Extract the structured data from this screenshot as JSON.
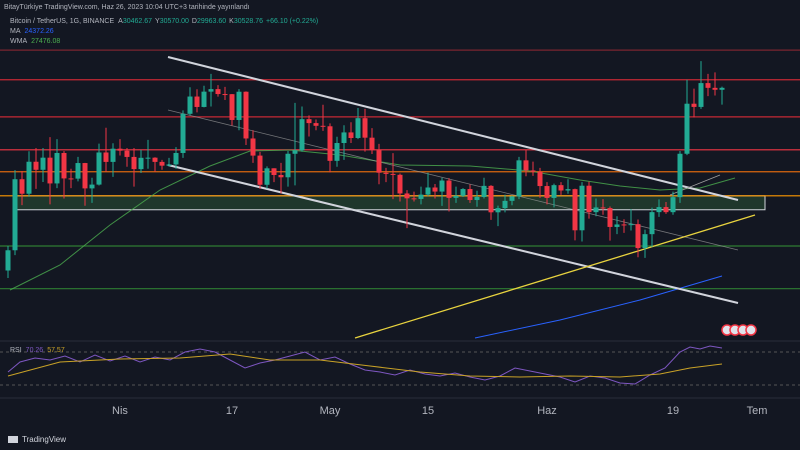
{
  "header": {
    "published": "BitayTürkiye TradingView.com, Haz 26, 2023 10:04 UTC+3 tarihinde yayınlandı",
    "footer": "TradingView"
  },
  "chart_data": {
    "type": "candlestick",
    "symbol": "Bitcoin / TetherUS, 1G, BINANCE",
    "last_value_labels": {
      "prefixes": [
        "A",
        "Y",
        "D",
        "K"
      ],
      "labels": [
        "30462.67",
        "30570.00",
        "29963.60",
        "30528.76"
      ],
      "change": "+66.10 (+0.22%)"
    },
    "indicators": [
      {
        "name": "MA",
        "value": 24372.26,
        "color": "#2962ff"
      },
      {
        "name": "WMA",
        "value": 27476.08,
        "color": "#4caf50"
      }
    ],
    "rsi": {
      "name": "RSI",
      "value": 70.26,
      "ma": 57.57,
      "color": "#7e57c2",
      "ma_color": "#c9a227"
    },
    "up_color": "#22ab94",
    "down_color": "#f23645",
    "ylim": [
      22200,
      32140
    ],
    "categories": [
      null,
      null,
      null,
      null,
      null,
      null,
      null,
      null,
      null,
      null,
      null,
      null,
      null,
      null,
      null,
      null,
      "Nis",
      null,
      null,
      null,
      null,
      null,
      null,
      null,
      null,
      null,
      null,
      null,
      null,
      null,
      null,
      null,
      "17",
      null,
      null,
      null,
      null,
      null,
      null,
      null,
      null,
      null,
      null,
      null,
      null,
      null,
      "May",
      null,
      null,
      null,
      null,
      null,
      null,
      null,
      null,
      null,
      null,
      null,
      null,
      null,
      "15",
      null,
      null,
      null,
      null,
      null,
      null,
      null,
      null,
      null,
      null,
      null,
      null,
      null,
      null,
      null,
      null,
      "Haz",
      null,
      null,
      null,
      null,
      null,
      null,
      null,
      null,
      null,
      null,
      null,
      null,
      null,
      null,
      null,
      null,
      null,
      "19",
      null,
      null,
      null,
      null,
      null,
      null,
      null,
      null,
      null,
      null,
      null,
      "Tem"
    ],
    "open": [
      24373,
      25055,
      27449,
      26960,
      28038,
      27767,
      28175,
      27307,
      28333,
      27476,
      27469,
      27994,
      27140,
      27268,
      28350,
      28033,
      28478,
      28411,
      28200,
      27790,
      28170,
      28175,
      28033,
      27906,
      27947,
      28333,
      29653,
      30235,
      29884,
      30400,
      30485,
      30319,
      30315,
      29445,
      30397,
      28822,
      28245,
      27262,
      27817,
      27591,
      27514,
      28307,
      28422,
      29473,
      29340,
      29249,
      29233,
      28068,
      28669,
      29026,
      28838,
      29506,
      28849,
      28430,
      27668,
      27628,
      27598,
      26969,
      26805,
      26784,
      26930,
      27170,
      27033,
      27405,
      26821,
      26890,
      27118,
      26748,
      26850,
      27225,
      26334,
      26476,
      26720,
      26869,
      28085,
      27745,
      27700,
      27219,
      26819,
      27249,
      27069,
      27115,
      25728,
      27230,
      26339,
      26498,
      26477,
      25841,
      25925,
      25905,
      25935,
      25128,
      25598,
      26340,
      26510,
      26339,
      26845,
      28307,
      29993,
      29885,
      30688,
      30528,
      30462.67,
      null,
      null,
      null,
      null,
      null
    ],
    "high": [
      25200,
      27756,
      27725,
      28390,
      28500,
      28500,
      28868,
      28800,
      28400,
      27800,
      28200,
      28000,
      27500,
      28650,
      29185,
      28660,
      28800,
      28500,
      28500,
      28444,
      28775,
      28190,
      28100,
      28170,
      28530,
      29770,
      30550,
      30480,
      30600,
      31000,
      30620,
      30560,
      30320,
      30485,
      30410,
      29100,
      28370,
      27880,
      27820,
      28000,
      28400,
      30020,
      29900,
      29600,
      29460,
      29960,
      29330,
      28880,
      29266,
      29370,
      29850,
      29820,
      29170,
      28640,
      27830,
      28330,
      27640,
      27080,
      27030,
      27200,
      27665,
      27290,
      27500,
      27485,
      27200,
      27150,
      27270,
      27060,
      27500,
      27250,
      26560,
      26930,
      26890,
      28200,
      28450,
      28040,
      27830,
      27350,
      27300,
      27350,
      27450,
      27130,
      27350,
      27370,
      26800,
      26780,
      26530,
      26200,
      26100,
      26440,
      26090,
      25750,
      26490,
      26770,
      26680,
      27030,
      28400,
      30800,
      30500,
      31430,
      31000,
      31050,
      30570,
      null,
      null,
      null,
      null,
      null
    ],
    "low": [
      24120,
      24890,
      26578,
      26860,
      27124,
      27357,
      26601,
      27150,
      26800,
      27150,
      27375,
      26555,
      26650,
      27236,
      27700,
      27530,
      28250,
      27870,
      27200,
      27660,
      27800,
      27700,
      27770,
      27880,
      27800,
      28170,
      29600,
      29700,
      29870,
      29900,
      30230,
      30120,
      29260,
      29100,
      28600,
      28000,
      27125,
      27130,
      27350,
      26970,
      27200,
      27240,
      28380,
      28890,
      29100,
      29080,
      27680,
      27870,
      28100,
      28670,
      28800,
      28380,
      28300,
      27280,
      27350,
      26780,
      26700,
      25800,
      26700,
      26600,
      26880,
      26800,
      26550,
      26360,
      26650,
      26850,
      26650,
      26520,
      26800,
      26080,
      25870,
      26330,
      26570,
      26780,
      27550,
      27560,
      26820,
      26600,
      26500,
      26920,
      26960,
      25390,
      25350,
      26120,
      26200,
      26250,
      25380,
      25600,
      25640,
      25720,
      24820,
      24800,
      25160,
      26180,
      26280,
      26250,
      26650,
      28260,
      29530,
      29820,
      30250,
      30270,
      29963.6,
      null,
      null,
      null,
      null,
      null
    ],
    "close": [
      25055,
      27449,
      26960,
      28038,
      27767,
      28175,
      27307,
      28333,
      27476,
      27469,
      27994,
      27140,
      27268,
      28350,
      28033,
      28478,
      28411,
      28200,
      27790,
      28170,
      28175,
      28033,
      27906,
      27947,
      28333,
      29653,
      30235,
      29884,
      30400,
      30485,
      30319,
      30315,
      29445,
      30397,
      28822,
      28245,
      27262,
      27817,
      27591,
      27514,
      28307,
      28422,
      29473,
      29340,
      29249,
      29233,
      28068,
      28669,
      29026,
      28838,
      29506,
      28849,
      28430,
      27668,
      27628,
      27598,
      26969,
      26805,
      26784,
      26930,
      27170,
      27033,
      27405,
      26821,
      26890,
      27118,
      26748,
      26850,
      27225,
      26334,
      26476,
      26720,
      26869,
      28085,
      27745,
      27700,
      27219,
      26819,
      27249,
      27069,
      27115,
      25728,
      27230,
      26339,
      26498,
      26477,
      25841,
      25925,
      25905,
      25935,
      25128,
      25598,
      26340,
      26510,
      26339,
      26845,
      28307,
      29993,
      29885,
      30688,
      30528,
      30462.67,
      30528.76,
      null,
      null,
      null,
      null,
      null
    ],
    "levels": [
      {
        "value": 31800,
        "color": "#7a2530"
      },
      {
        "value": 30800,
        "color": "#c62834"
      },
      {
        "value": 29550,
        "color": "#c62834"
      },
      {
        "value": 28440,
        "color": "#f23645"
      },
      {
        "value": 27700,
        "color": "#d9660f"
      },
      {
        "value": 26890,
        "color": "#ff9800"
      },
      {
        "value": 25200,
        "color": "#2e7d32"
      },
      {
        "value": 23760,
        "color": "#2e7d32"
      }
    ],
    "zone": {
      "low": 26420,
      "high": 26890,
      "color": "#4caf50"
    }
  }
}
